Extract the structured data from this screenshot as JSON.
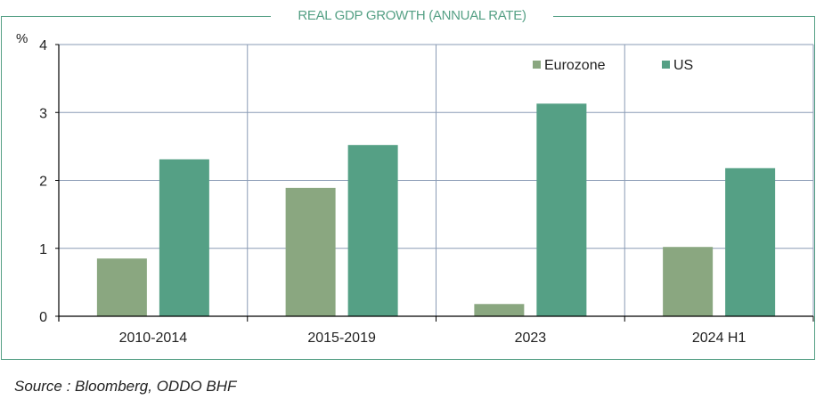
{
  "chart_data": {
    "type": "bar",
    "title": "REAL GDP GROWTH (ANNUAL RATE)",
    "ylabel": "%",
    "xlabel": "",
    "categories": [
      "2010-2014",
      "2015-2019",
      "2023",
      "2024 H1"
    ],
    "series": [
      {
        "name": "Eurozone",
        "color": "#8aa780",
        "values": [
          0.85,
          1.89,
          0.18,
          1.02
        ]
      },
      {
        "name": "US",
        "color": "#55a085",
        "values": [
          2.31,
          2.52,
          3.13,
          2.18
        ]
      }
    ],
    "ylim": [
      0,
      4
    ],
    "yticks": [
      0,
      1,
      2,
      3,
      4
    ],
    "grid": true,
    "legend": "top-right"
  },
  "source": "Source : Bloomberg, ODDO BHF"
}
